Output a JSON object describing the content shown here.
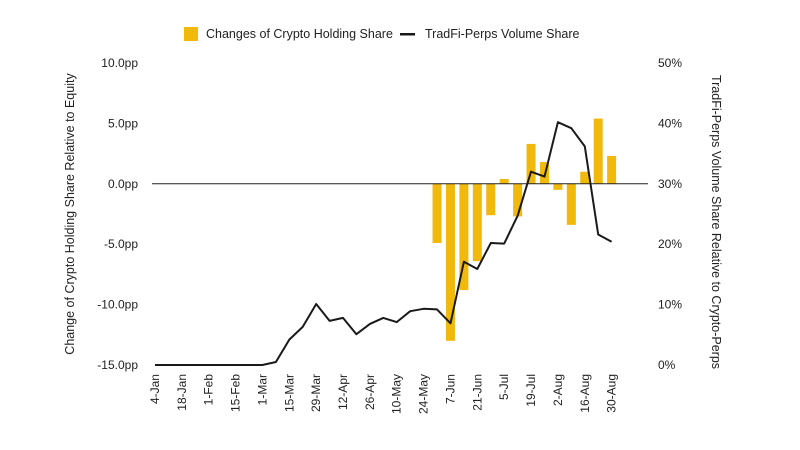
{
  "chart_data": {
    "type": "bar",
    "ylabel": "Change of Crypto Holding Share Relative to Equity",
    "y2label": "TradFi-Perps Volume Share Relative to Crypto-Perps",
    "ylim": [
      -15,
      10
    ],
    "y2lim": [
      0,
      50
    ],
    "yticks": [
      "10.0pp",
      "5.0pp",
      "0.0pp",
      "-5.0pp",
      "-10.0pp",
      "-15.0pp"
    ],
    "y2ticks": [
      "50%",
      "40%",
      "30%",
      "20%",
      "10%",
      "0%"
    ],
    "grid": false,
    "legend_position": "top-center",
    "colors": {
      "bars": "#F0B90B",
      "line": "#1a1a1a"
    },
    "x_tick_labels": [
      "4-Jan",
      "18-Jan",
      "1-Feb",
      "15-Feb",
      "1-Mar",
      "15-Mar",
      "29-Mar",
      "12-Apr",
      "26-Apr",
      "10-May",
      "24-May",
      "7-Jun",
      "21-Jun",
      "5-Jul",
      "19-Jul",
      "2-Aug",
      "16-Aug",
      "30-Aug"
    ],
    "series": [
      {
        "name": "Changes of Crypto Holding Share",
        "type": "bar",
        "axis": "left",
        "x": [
          "31-May",
          "7-Jun",
          "14-Jun",
          "21-Jun",
          "28-Jun",
          "5-Jul",
          "12-Jul",
          "19-Jul",
          "26-Jul",
          "2-Aug",
          "9-Aug",
          "16-Aug",
          "23-Aug",
          "30-Aug"
        ],
        "values": [
          -4.9,
          -13.0,
          -8.8,
          -6.4,
          -2.6,
          0.4,
          -2.7,
          3.3,
          1.8,
          -0.5,
          -3.4,
          1.0,
          5.4,
          2.3
        ]
      },
      {
        "name": "TradFi-Perps Volume Share",
        "type": "line",
        "axis": "right",
        "x": [
          "4-Jan",
          "11-Jan",
          "18-Jan",
          "25-Jan",
          "1-Feb",
          "8-Feb",
          "15-Feb",
          "22-Feb",
          "1-Mar",
          "8-Mar",
          "15-Mar",
          "22-Mar",
          "29-Mar",
          "5-Apr",
          "12-Apr",
          "19-Apr",
          "26-Apr",
          "3-May",
          "10-May",
          "17-May",
          "24-May",
          "31-May",
          "7-Jun",
          "14-Jun",
          "21-Jun",
          "28-Jun",
          "5-Jul",
          "12-Jul",
          "19-Jul",
          "26-Jul",
          "2-Aug",
          "9-Aug",
          "16-Aug",
          "23-Aug",
          "30-Aug"
        ],
        "values": [
          0,
          0,
          0,
          0,
          0,
          0,
          0,
          0,
          0,
          0.5,
          4.2,
          6.3,
          10.1,
          7.3,
          7.8,
          5.1,
          6.8,
          7.8,
          7.1,
          8.9,
          9.3,
          9.2,
          6.9,
          17.1,
          15.9,
          20.2,
          20.1,
          24.7,
          32.0,
          31.2,
          40.2,
          39.2,
          36.2,
          21.6,
          20.4
        ]
      }
    ]
  }
}
